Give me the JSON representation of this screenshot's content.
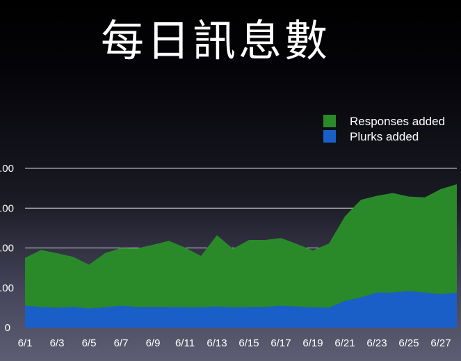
{
  "chart_data": {
    "type": "area",
    "stacked": true,
    "title": "每日訊息數",
    "xlabel": "",
    "ylabel": "",
    "x": [
      "6/1",
      "6/2",
      "6/3",
      "6/4",
      "6/5",
      "6/6",
      "6/7",
      "6/8",
      "6/9",
      "6/10",
      "6/11",
      "6/12",
      "6/13",
      "6/14",
      "6/15",
      "6/16",
      "6/17",
      "6/18",
      "6/19",
      "6/20",
      "6/21",
      "6/22",
      "6/23",
      "6/24",
      "6/25",
      "6/26",
      "6/27",
      "6/28"
    ],
    "x_tick_labels": [
      "6/1",
      "6/3",
      "6/5",
      "6/7",
      "6/9",
      "6/11",
      "6/13",
      "6/15",
      "6/17",
      "6/19",
      "6/21",
      "6/23",
      "6/25",
      "6/27"
    ],
    "y_tick_labels": [
      ".00",
      ".00",
      ".00",
      ".00",
      "0"
    ],
    "series": [
      {
        "name": "Plurks added",
        "color": "#1a5fc8",
        "values": [
          0.55,
          0.52,
          0.5,
          0.52,
          0.48,
          0.51,
          0.55,
          0.52,
          0.52,
          0.52,
          0.51,
          0.51,
          0.53,
          0.51,
          0.52,
          0.52,
          0.55,
          0.53,
          0.51,
          0.5,
          0.67,
          0.76,
          0.88,
          0.88,
          0.92,
          0.88,
          0.84,
          0.88
        ]
      },
      {
        "name": "Responses added",
        "color": "#2a8a2a",
        "values": [
          1.2,
          1.43,
          1.37,
          1.26,
          1.1,
          1.36,
          1.45,
          1.47,
          1.56,
          1.66,
          1.5,
          1.29,
          1.79,
          1.47,
          1.68,
          1.68,
          1.7,
          1.57,
          1.43,
          1.61,
          2.12,
          2.45,
          2.43,
          2.5,
          2.37,
          2.39,
          2.64,
          2.72
        ]
      }
    ],
    "ylim": [
      0,
      4
    ],
    "grid": true,
    "legend": "top-right"
  }
}
